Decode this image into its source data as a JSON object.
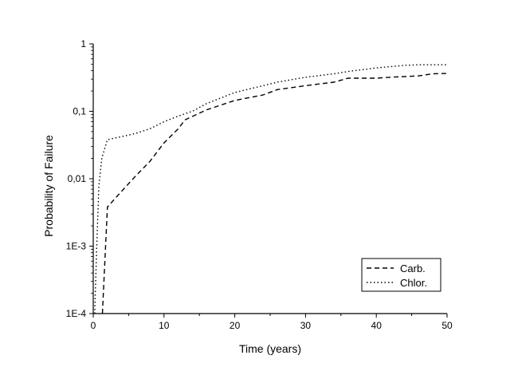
{
  "chart_data": {
    "type": "line",
    "title": "",
    "xlabel": "Time (years)",
    "ylabel": "Probability of Failure",
    "xlim": [
      0,
      50
    ],
    "ylim": [
      0.0001,
      1
    ],
    "yscale": "log",
    "grid": false,
    "legend_position": "bottom-right",
    "x_ticks": [
      0,
      10,
      20,
      30,
      40,
      50
    ],
    "x_tick_labels": [
      "0",
      "10",
      "20",
      "30",
      "40",
      "50"
    ],
    "y_ticks": [
      0.0001,
      0.001,
      0.01,
      0.1,
      1
    ],
    "y_tick_labels": [
      "1E-4",
      "1E-3",
      "0,01",
      "0,1",
      "1"
    ],
    "series": [
      {
        "name": "Carb.",
        "style": "dashed",
        "x": [
          1.3,
          2,
          4,
          6,
          8,
          10,
          12,
          13,
          16,
          20,
          24,
          26,
          30,
          34,
          36,
          40,
          42,
          46,
          48,
          50
        ],
        "y": [
          0.0001,
          0.0038,
          0.0065,
          0.011,
          0.018,
          0.034,
          0.055,
          0.075,
          0.105,
          0.145,
          0.175,
          0.21,
          0.24,
          0.27,
          0.31,
          0.31,
          0.32,
          0.335,
          0.36,
          0.365
        ]
      },
      {
        "name": "Chlor.",
        "style": "dotted",
        "x": [
          0.2,
          0.5,
          0.8,
          1.2,
          2,
          4,
          6,
          8,
          10,
          12,
          14,
          16,
          20,
          24,
          26,
          30,
          34,
          36,
          40,
          44,
          46,
          50
        ],
        "y": [
          0.0001,
          0.001,
          0.008,
          0.02,
          0.038,
          0.042,
          0.047,
          0.055,
          0.07,
          0.085,
          0.1,
          0.13,
          0.19,
          0.24,
          0.27,
          0.32,
          0.36,
          0.39,
          0.44,
          0.48,
          0.49,
          0.49
        ]
      }
    ]
  }
}
